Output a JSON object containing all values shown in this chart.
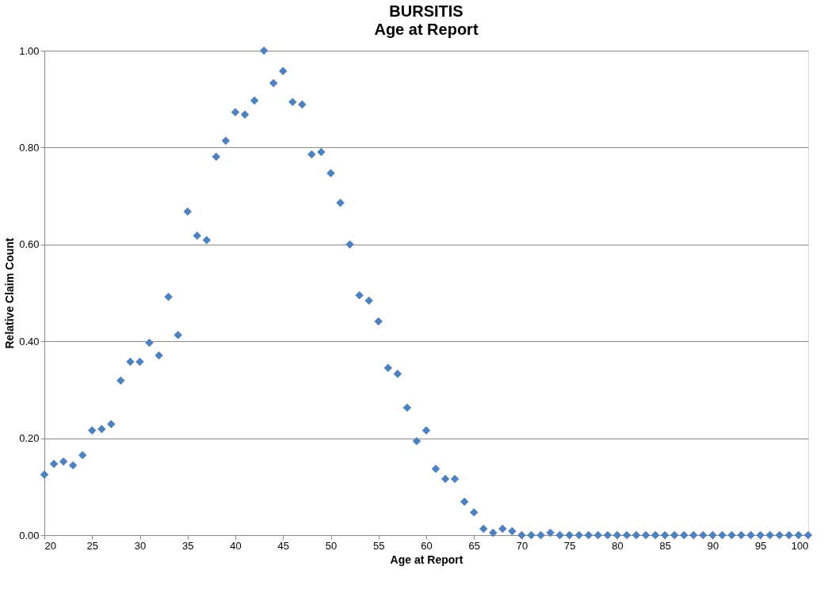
{
  "chart_data": {
    "type": "scatter",
    "title": "BURSITIS",
    "subtitle": "Age at Report",
    "xlabel": "Age at Report",
    "ylabel": "Relative Claim Count",
    "x": [
      20,
      21,
      22,
      23,
      24,
      25,
      26,
      27,
      28,
      29,
      30,
      31,
      32,
      33,
      34,
      35,
      36,
      37,
      38,
      39,
      40,
      41,
      42,
      43,
      44,
      45,
      46,
      47,
      48,
      49,
      50,
      51,
      52,
      53,
      54,
      55,
      56,
      57,
      58,
      59,
      60,
      61,
      62,
      63,
      64,
      65,
      66,
      67,
      68,
      69,
      70,
      71,
      72,
      73,
      74,
      75,
      76,
      77,
      78,
      79,
      80,
      81,
      82,
      83,
      84,
      85,
      86,
      87,
      88,
      89,
      90,
      91,
      92,
      93,
      94,
      95,
      96,
      97,
      98,
      99,
      100
    ],
    "series": [
      {
        "color": "#4f81bd",
        "values": [
          0.125,
          0.147,
          0.152,
          0.144,
          0.165,
          0.216,
          0.219,
          0.229,
          0.319,
          0.358,
          0.358,
          0.397,
          0.371,
          0.492,
          0.413,
          0.668,
          0.618,
          0.609,
          0.781,
          0.814,
          0.873,
          0.868,
          0.897,
          1.0,
          0.933,
          0.958,
          0.894,
          0.889,
          0.786,
          0.791,
          0.747,
          0.686,
          0.6,
          0.495,
          0.484,
          0.441,
          0.345,
          0.333,
          0.263,
          0.194,
          0.216,
          0.137,
          0.116,
          0.116,
          0.069,
          0.047,
          0.013,
          0.005,
          0.013,
          0.008,
          0,
          0,
          0,
          0.005,
          0,
          0,
          0,
          0,
          0,
          0,
          0,
          0,
          0,
          0,
          0,
          0,
          0,
          0,
          0,
          0,
          0,
          0,
          0,
          0,
          0,
          0,
          0,
          0,
          0,
          0,
          0
        ]
      }
    ],
    "xlim": [
      20,
      100
    ],
    "xticks": [
      20,
      25,
      30,
      35,
      40,
      45,
      50,
      55,
      60,
      65,
      70,
      75,
      80,
      85,
      90,
      95,
      100
    ],
    "ylim": [
      0,
      1
    ],
    "yticks": [
      {
        "value": 0,
        "label": "0.00"
      },
      {
        "value": 0.2,
        "label": "0.20"
      },
      {
        "value": 0.4,
        "label": "0.40"
      },
      {
        "value": 0.6,
        "label": "0.60"
      },
      {
        "value": 0.8,
        "label": "0.80"
      },
      {
        "value": 1,
        "label": "1.00"
      }
    ],
    "grid": "y",
    "marker": "diamond"
  }
}
